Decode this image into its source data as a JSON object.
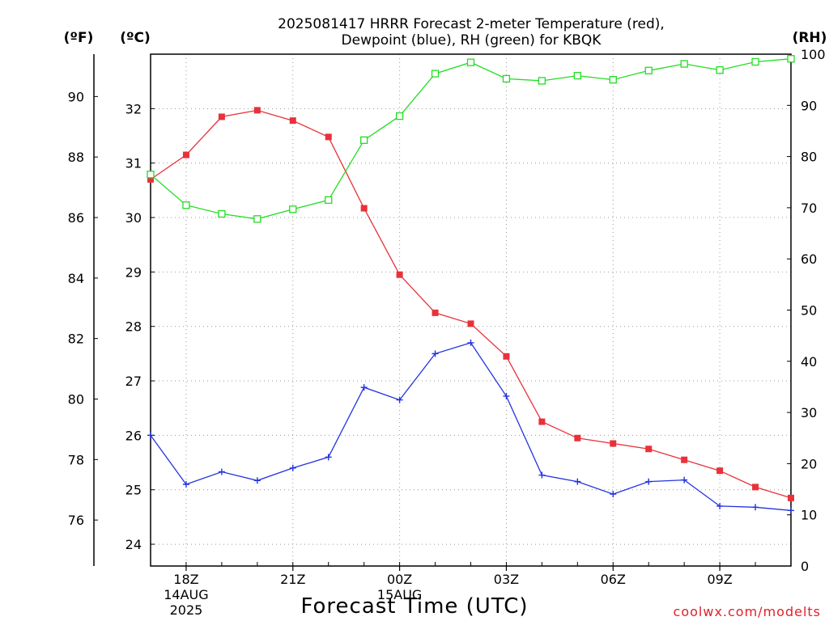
{
  "chart_data": {
    "type": "line",
    "title_line1": "2025081417 HRRR Forecast 2-meter Temperature (red),",
    "title_line2": "Dewpoint (blue), RH (green) for KBQK",
    "xlabel": "Forecast Time (UTC)",
    "credit": "coolwx.com/modelts",
    "units": {
      "fahrenheit": "(ºF)",
      "celsius": "(ºC)",
      "rh": "(RH)"
    },
    "x_hours": [
      17,
      18,
      19,
      20,
      21,
      22,
      23,
      24,
      25,
      26,
      27,
      28,
      29,
      30,
      31,
      32,
      33,
      34,
      35
    ],
    "x_ticks": [
      {
        "hour": 18,
        "lines": [
          "18Z",
          "14AUG",
          "2025"
        ]
      },
      {
        "hour": 21,
        "lines": [
          "21Z"
        ]
      },
      {
        "hour": 24,
        "lines": [
          "00Z",
          "15AUG"
        ]
      },
      {
        "hour": 27,
        "lines": [
          "03Z"
        ]
      },
      {
        "hour": 30,
        "lines": [
          "06Z"
        ]
      },
      {
        "hour": 33,
        "lines": [
          "09Z"
        ]
      }
    ],
    "celsius_axis": {
      "ylim": [
        23.6,
        33.0
      ],
      "ticks": [
        24,
        25,
        26,
        27,
        28,
        29,
        30,
        31,
        32
      ]
    },
    "fahrenheit_ticks": [
      76,
      78,
      80,
      82,
      84,
      86,
      88,
      90
    ],
    "rh_axis": {
      "ylim": [
        0,
        100
      ],
      "ticks": [
        0,
        10,
        20,
        30,
        40,
        50,
        60,
        70,
        80,
        90,
        100
      ]
    },
    "grid": true,
    "series": [
      {
        "name": "Temperature",
        "color": "#e8313a",
        "marker": "filled-square",
        "axis": "celsius",
        "values": [
          30.7,
          31.15,
          31.85,
          31.97,
          31.78,
          31.48,
          30.17,
          28.95,
          28.25,
          28.05,
          27.45,
          26.25,
          25.95,
          25.85,
          25.75,
          25.55,
          25.35,
          25.05,
          24.85
        ]
      },
      {
        "name": "Dewpoint",
        "color": "#2233e0",
        "marker": "plus",
        "axis": "celsius",
        "values": [
          26.0,
          25.1,
          25.33,
          25.17,
          25.4,
          25.6,
          26.88,
          26.65,
          27.5,
          27.7,
          26.72,
          25.27,
          25.15,
          24.92,
          25.15,
          25.18,
          24.7,
          24.68,
          24.62
        ]
      },
      {
        "name": "RH",
        "color": "#22dd22",
        "marker": "open-square",
        "axis": "rh",
        "values": [
          76.5,
          70.5,
          68.8,
          67.8,
          69.7,
          71.5,
          83.2,
          87.9,
          96.2,
          98.4,
          95.2,
          94.8,
          95.8,
          95.0,
          96.8,
          98.1,
          96.9,
          98.5,
          99.1
        ]
      }
    ]
  }
}
